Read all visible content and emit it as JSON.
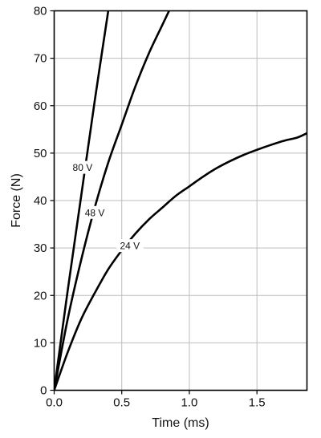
{
  "chart_data": {
    "type": "line",
    "title": "",
    "xlabel": "Time (ms)",
    "ylabel": "Force (N)",
    "xlim": [
      0,
      1.87
    ],
    "ylim": [
      0,
      80
    ],
    "x_ticks": [
      0.0,
      0.5,
      1.0,
      1.5
    ],
    "x_tick_labels": [
      "0.0",
      "0.5",
      "1.0",
      "1.5"
    ],
    "y_ticks": [
      0,
      10,
      20,
      30,
      40,
      50,
      60,
      70,
      80
    ],
    "y_tick_labels": [
      "0",
      "10",
      "20",
      "30",
      "40",
      "50",
      "60",
      "70",
      "80"
    ],
    "grid": true,
    "legend": "none",
    "colors": {
      "line": "#000000",
      "grid": "#bdbdbd",
      "frame": "#000000",
      "background": "#ffffff"
    },
    "series": [
      {
        "name": "80 V",
        "label_at": [
          0.21,
          47
        ],
        "x": [
          0.0,
          0.1,
          0.2,
          0.3,
          0.4
        ],
        "y": [
          0,
          21,
          41,
          61,
          80
        ]
      },
      {
        "name": "48 V",
        "label_at": [
          0.3,
          37.5
        ],
        "x": [
          0.0,
          0.1,
          0.2,
          0.3,
          0.4,
          0.5,
          0.6,
          0.7,
          0.8,
          0.85
        ],
        "y": [
          0,
          15,
          27.5,
          38.5,
          48,
          56,
          64,
          71,
          77,
          80
        ]
      },
      {
        "name": "24 V",
        "label_at": [
          0.56,
          30.5
        ],
        "x": [
          0.0,
          0.1,
          0.2,
          0.3,
          0.4,
          0.5,
          0.6,
          0.7,
          0.8,
          0.9,
          1.0,
          1.1,
          1.2,
          1.3,
          1.4,
          1.5,
          1.6,
          1.7,
          1.8,
          1.87
        ],
        "y": [
          0,
          8,
          15,
          20.5,
          25.5,
          29.5,
          33,
          36,
          38.5,
          41,
          43,
          45,
          46.8,
          48.3,
          49.6,
          50.7,
          51.7,
          52.6,
          53.3,
          54.2
        ]
      }
    ]
  }
}
